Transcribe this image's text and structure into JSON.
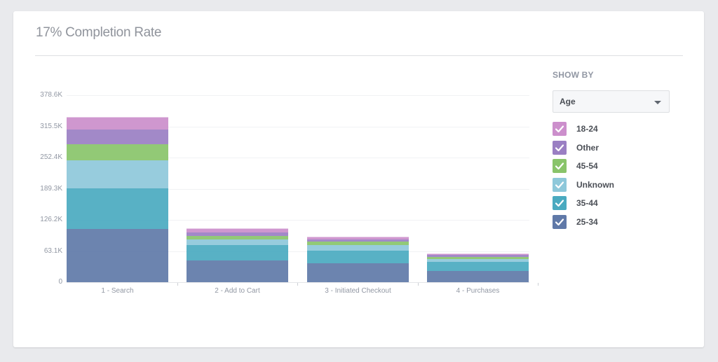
{
  "header": {
    "title": "17% Completion Rate"
  },
  "sidebar": {
    "show_by_label": "SHOW BY",
    "dropdown": {
      "selected": "Age",
      "icon": "caret-down-icon"
    },
    "legend": [
      {
        "label": "18-24",
        "color": "#cc8fcc",
        "checked": true,
        "icon": "checkmark-icon"
      },
      {
        "label": "Other",
        "color": "#9a7fc3",
        "checked": true,
        "icon": "checkmark-icon"
      },
      {
        "label": "45-54",
        "color": "#89c46a",
        "checked": true,
        "icon": "checkmark-icon"
      },
      {
        "label": "Unknown",
        "color": "#8ec8da",
        "checked": true,
        "icon": "checkmark-icon"
      },
      {
        "label": "35-44",
        "color": "#4aaac0",
        "checked": true,
        "icon": "checkmark-icon"
      },
      {
        "label": "25-34",
        "color": "#6079a8",
        "checked": true,
        "icon": "checkmark-icon"
      }
    ]
  },
  "chart_data": {
    "type": "bar",
    "stacked": true,
    "title": "17% Completion Rate",
    "xlabel": "",
    "ylabel": "",
    "ylim": [
      0,
      378600
    ],
    "y_ticks": [
      "0",
      "63.1K",
      "126.2K",
      "189.3K",
      "252.4K",
      "315.5K",
      "378.6K"
    ],
    "y_tick_values": [
      0,
      63100,
      126200,
      189300,
      252400,
      315500,
      378600
    ],
    "grid": true,
    "legend_position": "right",
    "categories": [
      "1 - Search",
      "2 - Add to Cart",
      "3 - Initiated Checkout",
      "4 - Purchases"
    ],
    "series": [
      {
        "name": "25-34",
        "color": "#6079a8",
        "values": [
          107800,
          44000,
          38300,
          22700
        ]
      },
      {
        "name": "35-44",
        "color": "#4aaac0",
        "values": [
          82200,
          31200,
          25500,
          18400
        ]
      },
      {
        "name": "Unknown",
        "color": "#8ec8da",
        "values": [
          56700,
          11300,
          11300,
          5700
        ]
      },
      {
        "name": "45-54",
        "color": "#89c46a",
        "values": [
          32600,
          7100,
          7100,
          4300
        ]
      },
      {
        "name": "Other",
        "color": "#9a7fc3",
        "values": [
          29800,
          7100,
          4300,
          4300
        ]
      },
      {
        "name": "18-24",
        "color": "#cc8fcc",
        "values": [
          25500,
          8500,
          5700,
          2800
        ]
      }
    ]
  }
}
